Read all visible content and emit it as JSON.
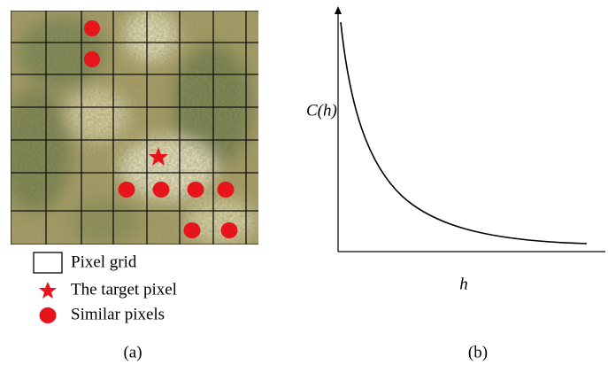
{
  "panel_a": {
    "legend": [
      {
        "label": "Pixel grid"
      },
      {
        "label": "The target pixel"
      },
      {
        "label": "Similar pixels"
      }
    ],
    "caption": "(a)"
  },
  "panel_b": {
    "y_label": "C(h)",
    "x_label": "h",
    "caption": "(b)"
  }
}
